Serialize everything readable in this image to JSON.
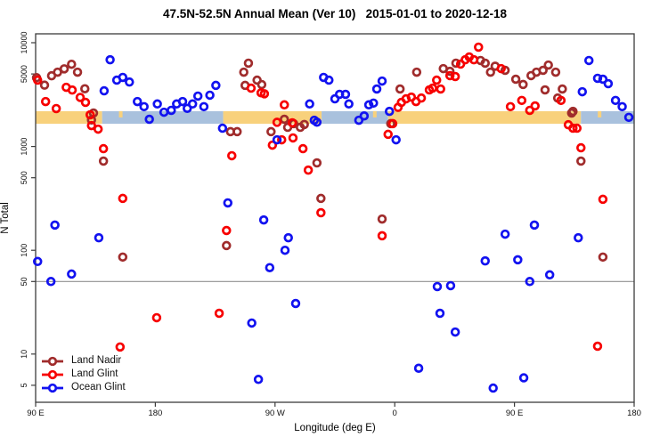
{
  "title": "47.5N-52.5N Annual Mean (Ver 10)   2015-01-01 to 2020-12-18",
  "chart_data": {
    "type": "scatter",
    "title": "47.5N-52.5N Annual Mean (Ver 10)   2015-01-01 to 2020-12-18",
    "xlabel": "Longitude (deg E)",
    "ylabel": "N Total",
    "x_axis": {
      "range": [
        90,
        540
      ],
      "ticks": [
        90,
        180,
        270,
        360,
        450,
        540
      ],
      "tick_labels": [
        "90 E",
        "180",
        "90 W",
        "0",
        "90 E",
        "180"
      ]
    },
    "y_axis": {
      "scale": "log",
      "edge_range": [
        3.43,
        12180
      ],
      "ticks": [
        5,
        10,
        50,
        100,
        500,
        1000,
        5000,
        10000
      ],
      "tick_labels": [
        "5",
        "10",
        "50",
        "100",
        "500",
        "1000",
        "5000",
        "10000"
      ]
    },
    "grid": "off",
    "reference_line": {
      "y": 50,
      "color": "#909090"
    },
    "frame_color": "#3C3C3C",
    "mean_band": {
      "value_top": 2190,
      "value_bottom": 1655,
      "land_color": "#F8D17C",
      "ocean_color": "#A9C1DD",
      "segments": [
        {
          "surface": "land",
          "lon_start": 90,
          "lon_end": 140
        },
        {
          "surface": "ocean",
          "lon_start": 140,
          "lon_end": 231
        },
        {
          "surface": "land",
          "lon_start": 231,
          "lon_end": 305
        },
        {
          "surface": "ocean",
          "lon_start": 305,
          "lon_end": 355
        },
        {
          "surface": "land",
          "lon_start": 355,
          "lon_end": 500
        },
        {
          "surface": "ocean",
          "lon_start": 500,
          "lon_end": 540
        }
      ],
      "islands_lon": [
        154,
        345,
        514
      ]
    },
    "legend_position": "bottom-left",
    "series": [
      {
        "name": "Land Nadir",
        "color": "#A02C2C",
        "points": [
          [
            90.7,
            4600
          ],
          [
            96.7,
            3900
          ],
          [
            102,
            4800
          ],
          [
            106.5,
            5200
          ],
          [
            111.5,
            5600
          ],
          [
            117,
            6200
          ],
          [
            121.5,
            5200
          ],
          [
            127,
            3600
          ],
          [
            132,
            1800
          ],
          [
            133.5,
            2100
          ],
          [
            141,
            723
          ],
          [
            155.5,
            86
          ],
          [
            233.5,
            111
          ],
          [
            236.5,
            1390
          ],
          [
            241.5,
            1390
          ],
          [
            246.5,
            5200
          ],
          [
            247.5,
            3880
          ],
          [
            250,
            6350
          ],
          [
            256.5,
            4360
          ],
          [
            260,
            3950
          ],
          [
            267,
            1390
          ],
          [
            277,
            1830
          ],
          [
            279.5,
            1530
          ],
          [
            284,
            1660
          ],
          [
            289,
            1530
          ],
          [
            292,
            1630
          ],
          [
            301.5,
            695
          ],
          [
            304.5,
            316
          ],
          [
            350.5,
            200
          ],
          [
            357,
            1660
          ],
          [
            364,
            3580
          ],
          [
            376.5,
            5200
          ],
          [
            396.5,
            5630
          ],
          [
            401.5,
            5300
          ],
          [
            406,
            6350
          ],
          [
            424.5,
            6740
          ],
          [
            428,
            6350
          ],
          [
            432,
            5200
          ],
          [
            435.5,
            5940
          ],
          [
            443,
            5420
          ],
          [
            451,
            4450
          ],
          [
            456.5,
            3960
          ],
          [
            462.5,
            4820
          ],
          [
            466.5,
            5200
          ],
          [
            471.5,
            5420
          ],
          [
            473,
            3510
          ],
          [
            475.5,
            6090
          ],
          [
            481,
            5200
          ],
          [
            482.5,
            2930
          ],
          [
            486,
            3580
          ],
          [
            493,
            2100
          ],
          [
            494,
            2180
          ],
          [
            500,
            723
          ],
          [
            516.5,
            86
          ]
        ]
      },
      {
        "name": "Land Glint",
        "color": "#F70000",
        "points": [
          [
            91.5,
            4360
          ],
          [
            97.5,
            2710
          ],
          [
            105.5,
            2320
          ],
          [
            113,
            3720
          ],
          [
            117.5,
            3500
          ],
          [
            123.5,
            2970
          ],
          [
            127.5,
            2660
          ],
          [
            131,
            2020
          ],
          [
            132,
            1590
          ],
          [
            137,
            1470
          ],
          [
            141,
            953
          ],
          [
            153.5,
            11.7
          ],
          [
            155.5,
            316
          ],
          [
            181,
            22.4
          ],
          [
            228,
            24.7
          ],
          [
            233.5,
            155
          ],
          [
            237.5,
            815
          ],
          [
            252,
            3650
          ],
          [
            259.5,
            3290
          ],
          [
            262,
            3220
          ],
          [
            268,
            1030
          ],
          [
            271.5,
            1710
          ],
          [
            275,
            1160
          ],
          [
            277,
            2520
          ],
          [
            283,
            1690
          ],
          [
            283.5,
            1210
          ],
          [
            291,
            953
          ],
          [
            295,
            592
          ],
          [
            304.5,
            230
          ],
          [
            350.5,
            138
          ],
          [
            355,
            1310
          ],
          [
            358.5,
            1660
          ],
          [
            362.5,
            2380
          ],
          [
            365,
            2660
          ],
          [
            368.5,
            2880
          ],
          [
            372.5,
            2990
          ],
          [
            376,
            2710
          ],
          [
            380,
            2930
          ],
          [
            386,
            3510
          ],
          [
            388.5,
            3650
          ],
          [
            391.5,
            4360
          ],
          [
            394.5,
            3580
          ],
          [
            401.5,
            4820
          ],
          [
            405.5,
            4720
          ],
          [
            409.5,
            6220
          ],
          [
            413,
            6850
          ],
          [
            416,
            7290
          ],
          [
            419.5,
            6850
          ],
          [
            423,
            9060
          ],
          [
            440,
            5630
          ],
          [
            447,
            2420
          ],
          [
            455.5,
            2780
          ],
          [
            461.5,
            2230
          ],
          [
            465.5,
            2460
          ],
          [
            485,
            2780
          ],
          [
            490.5,
            1620
          ],
          [
            494,
            1500
          ],
          [
            497,
            1500
          ],
          [
            500,
            972
          ],
          [
            512.5,
            11.9
          ],
          [
            516.5,
            310
          ]
        ]
      },
      {
        "name": "Ocean Glint",
        "color": "#1212F0",
        "points": [
          [
            91.5,
            78
          ],
          [
            101.5,
            50
          ],
          [
            104.5,
            175
          ],
          [
            117,
            59
          ],
          [
            137.5,
            132
          ],
          [
            141.5,
            3440
          ],
          [
            146,
            6850
          ],
          [
            151,
            4360
          ],
          [
            155.5,
            4630
          ],
          [
            160.5,
            4180
          ],
          [
            166.5,
            2710
          ],
          [
            171.5,
            2420
          ],
          [
            175.5,
            1830
          ],
          [
            181.5,
            2570
          ],
          [
            186.5,
            2140
          ],
          [
            192,
            2230
          ],
          [
            196,
            2570
          ],
          [
            200.5,
            2710
          ],
          [
            204,
            2330
          ],
          [
            208,
            2570
          ],
          [
            212,
            3060
          ],
          [
            216.5,
            2420
          ],
          [
            221,
            3120
          ],
          [
            225.5,
            3880
          ],
          [
            230.5,
            1500
          ],
          [
            234.5,
            286
          ],
          [
            252.5,
            19.9
          ],
          [
            257.5,
            5.7
          ],
          [
            261.5,
            196
          ],
          [
            266,
            68
          ],
          [
            271.5,
            1160
          ],
          [
            277.5,
            100
          ],
          [
            280,
            132
          ],
          [
            285.5,
            30.7
          ],
          [
            296,
            2570
          ],
          [
            299.5,
            1790
          ],
          [
            301.5,
            1715
          ],
          [
            306.5,
            4630
          ],
          [
            310.5,
            4360
          ],
          [
            315,
            2880
          ],
          [
            318.5,
            3180
          ],
          [
            323,
            3180
          ],
          [
            325.5,
            2570
          ],
          [
            333,
            1790
          ],
          [
            337,
            1970
          ],
          [
            340.5,
            2520
          ],
          [
            344,
            2620
          ],
          [
            346.5,
            3580
          ],
          [
            350.5,
            4270
          ],
          [
            356,
            2180
          ],
          [
            361,
            1160
          ],
          [
            378,
            7.3
          ],
          [
            392,
            44.7
          ],
          [
            394,
            24.7
          ],
          [
            402,
            45.6
          ],
          [
            405.5,
            16.3
          ],
          [
            428,
            79
          ],
          [
            434,
            4.7
          ],
          [
            443,
            143
          ],
          [
            452.5,
            81
          ],
          [
            457,
            5.9
          ],
          [
            461.5,
            50
          ],
          [
            465,
            175
          ],
          [
            476.5,
            58
          ],
          [
            498,
            132
          ],
          [
            501,
            3370
          ],
          [
            506,
            6740
          ],
          [
            512.5,
            4540
          ],
          [
            516.5,
            4450
          ],
          [
            520.5,
            4030
          ],
          [
            526,
            2780
          ],
          [
            531,
            2420
          ],
          [
            536,
            1910
          ]
        ]
      }
    ]
  }
}
